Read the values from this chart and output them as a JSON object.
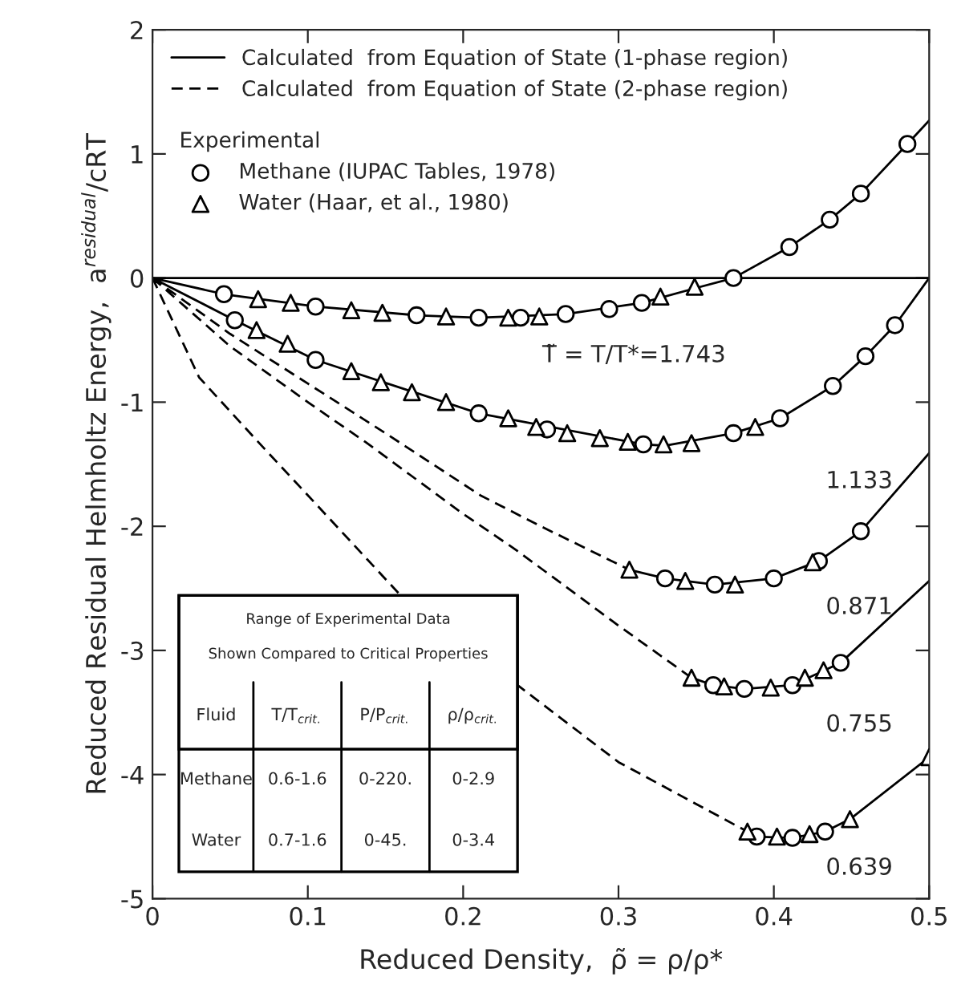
{
  "chart_data": {
    "type": "line",
    "xlabel": "Reduced Density,  ρ̃ = ρ/ρ*",
    "ylabel": "Reduced Residual Helmholtz Energy,  a$^{residual}$/cRT",
    "xlim": [
      0,
      0.5
    ],
    "ylim": [
      -5,
      2
    ],
    "xticks": [
      0,
      0.1,
      0.2,
      0.3,
      0.4,
      0.5
    ],
    "yticks": [
      -5,
      -4,
      -3,
      -2,
      -1,
      0,
      1,
      2
    ],
    "grid": false,
    "legend": "top",
    "legend_title": "Experimental",
    "ref_lines": [
      {
        "axis": "y",
        "value": 0,
        "color": "#000000"
      }
    ],
    "series": [
      {
        "name": "Calculated  from Equation of State (1-phase region)",
        "color": "#000000",
        "line_style": "solid",
        "x": [
          0,
          0.046,
          0.105,
          0.17,
          0.21,
          0.266,
          0.315,
          0.35,
          0.374,
          0.41,
          0.436,
          0.456,
          0.486,
          0.5,
          null,
          0,
          0.053,
          0.105,
          0.21,
          0.316,
          0.33,
          0.374,
          0.404,
          0.438,
          0.459,
          0.478,
          0.5,
          null,
          0.307,
          0.33,
          0.362,
          0.4,
          0.429,
          0.456,
          0.5,
          null,
          0.347,
          0.361,
          0.381,
          0.412,
          0.443,
          0.5,
          null,
          0.383,
          0.389,
          0.412,
          0.433,
          0.449,
          0.5
        ],
        "values": [
          0,
          -0.13,
          -0.23,
          -0.3,
          -0.32,
          -0.29,
          -0.2,
          -0.08,
          0,
          0.25,
          0.47,
          0.68,
          1.08,
          1.27,
          null,
          0,
          -0.34,
          -0.66,
          -1.09,
          -1.34,
          -1.35,
          -1.25,
          -1.13,
          -0.87,
          -0.63,
          -0.38,
          0,
          null,
          -2.35,
          -2.42,
          -2.47,
          -2.42,
          -2.28,
          -2.04,
          -1.41,
          null,
          -3.22,
          -3.28,
          -3.31,
          -3.28,
          -3.1,
          -2.44,
          null,
          -4.46,
          -4.5,
          -4.51,
          -4.46,
          -4.36,
          -3.86
        ]
      },
      {
        "name": "Calculated  from Equation of State (2-phase region)",
        "color": "#000000",
        "line_style": "dashed",
        "x": [
          0,
          0.05,
          0.1,
          0.15,
          0.211,
          0.25,
          0.307,
          null,
          0,
          0.05,
          0.1,
          0.137,
          0.2,
          0.234,
          0.3,
          0.347,
          null,
          0,
          0.03,
          0.068,
          0.1,
          0.16,
          null,
          0.234,
          0.3,
          0.383
        ],
        "values": [
          0,
          -0.45,
          -0.85,
          -1.25,
          -1.75,
          -2.0,
          -2.35,
          null,
          0,
          -0.55,
          -1.0,
          -1.32,
          -1.9,
          -2.19,
          -2.8,
          -3.22,
          null,
          0,
          -0.8,
          -1.32,
          -1.75,
          -2.56,
          null,
          -3.27,
          -3.9,
          -4.46
        ]
      },
      {
        "name": "Methane (IUPAC Tables, 1978)",
        "type": "scatter",
        "color": "#000000",
        "marker": "circle",
        "x": [
          0.046,
          0.105,
          0.17,
          0.21,
          0.237,
          0.266,
          0.294,
          0.315,
          0.374,
          0.41,
          0.436,
          0.456,
          0.486,
          0.053,
          0.105,
          0.21,
          0.254,
          0.29,
          0.316,
          0.374,
          0.404,
          0.438,
          0.459,
          0.478,
          0.33,
          0.362,
          0.4,
          0.429,
          0.456,
          0.361,
          0.381,
          0.412,
          0.443,
          0.389,
          0.412,
          0.433
        ],
        "values": [
          -0.13,
          -0.23,
          -0.3,
          -0.32,
          -0.32,
          -0.29,
          -0.25,
          -0.2,
          0,
          0.25,
          0.47,
          0.68,
          1.08,
          -0.34,
          -0.66,
          -1.09,
          -1.22,
          null,
          -1.34,
          -1.25,
          -1.13,
          -0.87,
          -0.63,
          -0.38,
          -2.42,
          -2.47,
          -2.42,
          -2.28,
          -2.04,
          -3.28,
          -3.31,
          -3.28,
          -3.1,
          -4.5,
          -4.51,
          -4.46
        ]
      },
      {
        "name": "Water (Haar, et al., 1980)",
        "type": "scatter",
        "color": "#000000",
        "marker": "triangle",
        "x": [
          0.068,
          0.089,
          0.128,
          0.148,
          0.189,
          0.229,
          0.249,
          0.327,
          0.349,
          0.067,
          0.087,
          0.128,
          0.147,
          0.167,
          0.189,
          0.229,
          0.247,
          0.267,
          0.288,
          0.306,
          0.329,
          0.347,
          0.388,
          0.307,
          0.343,
          0.375,
          0.425,
          0.347,
          0.368,
          0.398,
          0.42,
          0.432,
          0.383,
          0.402,
          0.423,
          0.449,
          0.5
        ],
        "values": [
          -0.17,
          -0.2,
          -0.26,
          -0.28,
          -0.31,
          -0.32,
          -0.31,
          -0.15,
          -0.07,
          -0.42,
          -0.53,
          -0.75,
          -0.84,
          -0.92,
          -1.0,
          -1.13,
          -1.2,
          -1.25,
          -1.29,
          -1.32,
          -1.34,
          -1.33,
          -1.2,
          -2.35,
          -2.44,
          -2.47,
          -2.29,
          -3.22,
          -3.29,
          -3.3,
          -3.22,
          -3.16,
          -4.46,
          -4.5,
          -4.48,
          -4.36,
          -3.86
        ]
      }
    ],
    "annotations": [
      "T̃ = T/T*=1.743",
      "1.133",
      "0.871",
      "0.755",
      "0.639",
      "Range of Experimental Data Shown Compared to Critical Properties",
      "Fluid",
      "T/T$_{crit.}$",
      "P/P$_{crit.}$",
      "ρ/ρ$_{crit.}$",
      "Methane",
      "0.6-1.6",
      "0-220.",
      "0-2.9",
      "Water",
      "0.7-1.6",
      "0-45.",
      "0-3.4"
    ]
  }
}
